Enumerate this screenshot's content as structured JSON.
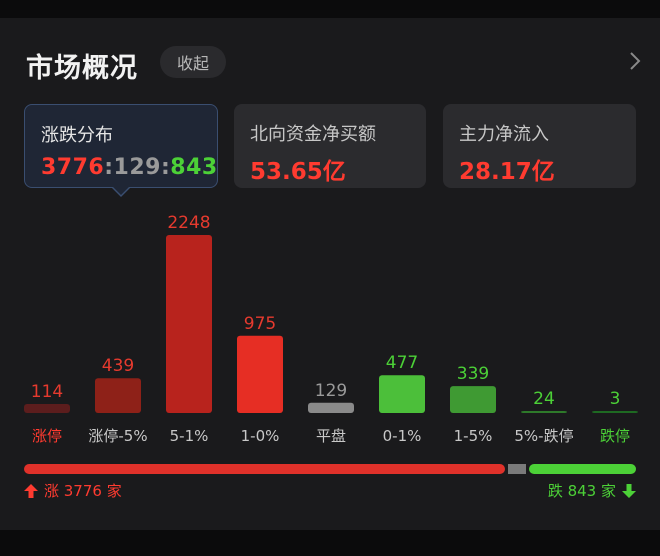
{
  "header": {
    "title": "市场概况",
    "collapse_label": "收起"
  },
  "cards": [
    {
      "label": "涨跌分布",
      "up": "3776",
      "flat": "129",
      "down": "843",
      "sep": ":"
    },
    {
      "label": "北向资金净买额",
      "value": "53.65亿"
    },
    {
      "label": "主力净流入",
      "value": "28.17亿"
    }
  ],
  "chart_data": {
    "type": "bar",
    "categories": [
      "涨停",
      "涨停-5%",
      "5-1%",
      "1-0%",
      "平盘",
      "0-1%",
      "1-5%",
      "5%-跌停",
      "跌停"
    ],
    "values": [
      114,
      439,
      2248,
      975,
      129,
      477,
      339,
      24,
      3
    ],
    "colors": [
      "#5c1d1d",
      "#8e2118",
      "#b8231d",
      "#e62e24",
      "#8a8a8a",
      "#4cbf3a",
      "#3f9a33",
      "#2e7a2a",
      "#1e6a22"
    ],
    "label_colors": [
      "#e63a2e",
      "#e63a2e",
      "#e63a2e",
      "#e63a2e",
      "#9a9a9a",
      "#4cd137",
      "#4cd137",
      "#4cd137",
      "#4cd137"
    ],
    "category_colors": [
      "#ff3b30",
      "#c8c8c8",
      "#c8c8c8",
      "#c8c8c8",
      "#c8c8c8",
      "#c8c8c8",
      "#c8c8c8",
      "#c8c8c8",
      "#4cd137"
    ]
  },
  "footer": {
    "up_text": "涨 3776 家",
    "down_text": "跌 843 家"
  },
  "progress": {
    "up": 3776,
    "flat": 129,
    "down": 843
  },
  "colors": {
    "up": "#ff3b30",
    "down": "#4cd137",
    "flat": "#808080"
  }
}
